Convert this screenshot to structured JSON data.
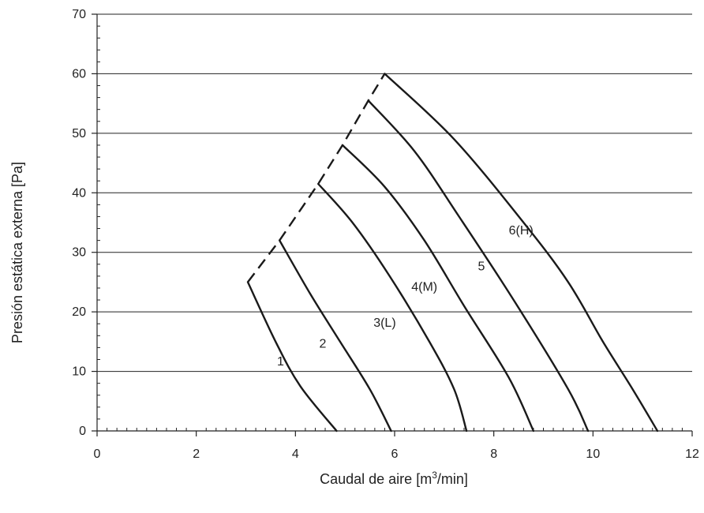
{
  "chart_data": {
    "type": "line",
    "xlabel": "Caudal de aire [m³/min]",
    "ylabel": "Presión estática externa [Pa]",
    "xlim": [
      0,
      12
    ],
    "ylim": [
      0,
      70
    ],
    "x_ticks": [
      0,
      2,
      4,
      6,
      8,
      10,
      12
    ],
    "y_ticks": [
      0,
      10,
      20,
      30,
      40,
      50,
      60,
      70
    ],
    "x_minor_step": 0.2,
    "y_minor_step": 2,
    "grid": "horizontal",
    "series": [
      {
        "name": "1",
        "points": [
          [
            3.04,
            25
          ],
          [
            3.6,
            15
          ],
          [
            4.1,
            7.5
          ],
          [
            4.83,
            0
          ]
        ],
        "label_at": [
          3.7,
          11
        ]
      },
      {
        "name": "2",
        "points": [
          [
            3.68,
            32
          ],
          [
            4.3,
            23
          ],
          [
            4.9,
            15
          ],
          [
            5.5,
            7
          ],
          [
            5.93,
            0
          ]
        ],
        "label_at": [
          4.55,
          14
        ]
      },
      {
        "name": "3(L)",
        "points": [
          [
            4.46,
            41.5
          ],
          [
            5.15,
            35
          ],
          [
            5.9,
            26
          ],
          [
            6.7,
            15
          ],
          [
            7.2,
            7
          ],
          [
            7.45,
            0
          ]
        ],
        "label_at": [
          5.8,
          17.5
        ]
      },
      {
        "name": "4(M)",
        "points": [
          [
            4.95,
            48
          ],
          [
            5.8,
            41
          ],
          [
            6.6,
            32
          ],
          [
            7.4,
            21
          ],
          [
            8.3,
            9
          ],
          [
            8.8,
            0
          ]
        ],
        "label_at": [
          6.6,
          23.5
        ]
      },
      {
        "name": "5",
        "points": [
          [
            5.47,
            55.5
          ],
          [
            6.4,
            47
          ],
          [
            7.3,
            36
          ],
          [
            8.4,
            22
          ],
          [
            9.5,
            7
          ],
          [
            9.9,
            0
          ]
        ],
        "label_at": [
          7.75,
          27
        ]
      },
      {
        "name": "6(H)",
        "points": [
          [
            5.8,
            60
          ],
          [
            7.2,
            49
          ],
          [
            8.6,
            35
          ],
          [
            9.5,
            25
          ],
          [
            10.2,
            15
          ],
          [
            10.8,
            7
          ],
          [
            11.3,
            0
          ]
        ],
        "label_at": [
          8.55,
          33
        ]
      }
    ],
    "limit_line": {
      "style": "dashed",
      "points": [
        [
          3.04,
          25
        ],
        [
          3.68,
          32
        ],
        [
          4.46,
          41.5
        ],
        [
          4.95,
          48
        ],
        [
          5.47,
          55.5
        ],
        [
          5.8,
          60
        ]
      ]
    }
  }
}
